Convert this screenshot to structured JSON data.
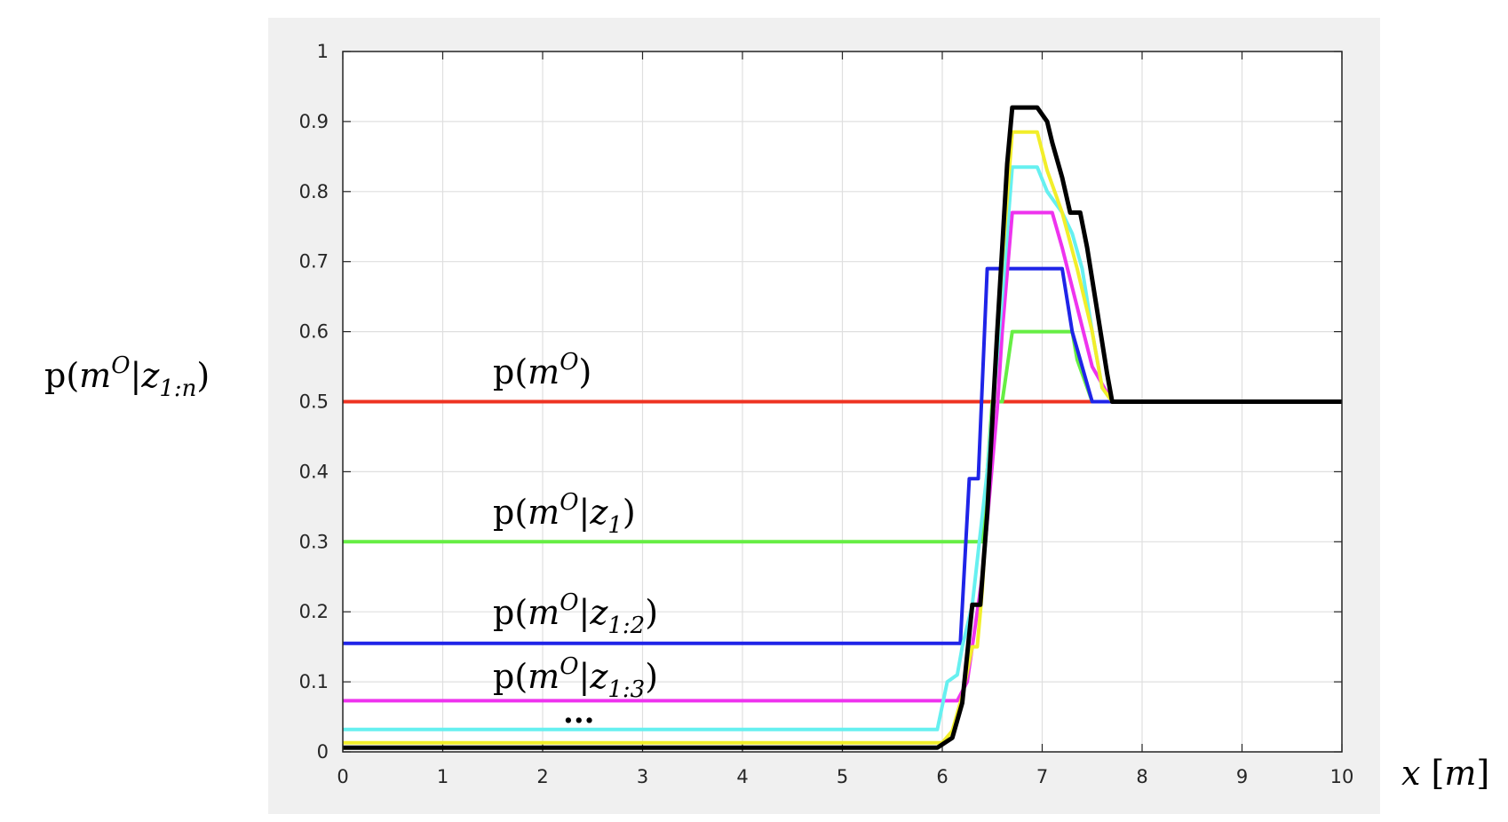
{
  "chart_data": {
    "type": "line",
    "xlim": [
      0,
      10
    ],
    "ylim": [
      0,
      1
    ],
    "x_ticks": [
      0,
      1,
      2,
      3,
      4,
      5,
      6,
      7,
      8,
      9,
      10
    ],
    "y_ticks": [
      0,
      0.1,
      0.2,
      0.3,
      0.4,
      0.5,
      0.6,
      0.7,
      0.8,
      0.9,
      1
    ],
    "x_tick_labels": [
      "0",
      "1",
      "2",
      "3",
      "4",
      "5",
      "6",
      "7",
      "8",
      "9",
      "10"
    ],
    "y_tick_labels": [
      "0",
      "0.1",
      "0.2",
      "0.3",
      "0.4",
      "0.5",
      "0.6",
      "0.7",
      "0.8",
      "0.9",
      "1"
    ],
    "grid": true,
    "xlabel": {
      "var": "x",
      "unit": "m"
    },
    "ylabel": {
      "p": "p(",
      "m": "m",
      "sup": "O",
      "bar": "|",
      "z": "z",
      "sub": "1:n",
      "close": ")"
    },
    "annotations": [
      {
        "p": "p(",
        "m": "m",
        "sup": "O",
        "bar": "",
        "z": "",
        "sub": "",
        "close": ")"
      },
      {
        "p": "p(",
        "m": "m",
        "sup": "O",
        "bar": "|",
        "z": "z",
        "sub": "1",
        "close": ")"
      },
      {
        "p": "p(",
        "m": "m",
        "sup": "O",
        "bar": "|",
        "z": "z",
        "sub": "1:2",
        "close": ")"
      },
      {
        "p": "p(",
        "m": "m",
        "sup": "O",
        "bar": "|",
        "z": "z",
        "sub": "1:3",
        "close": ")"
      },
      {
        "text": "..."
      }
    ],
    "series": [
      {
        "color": "#ee3322",
        "x": [
          0,
          10
        ],
        "y": [
          0.5,
          0.5
        ]
      },
      {
        "color": "#66ee44",
        "x": [
          0,
          6.4,
          6.5,
          6.6,
          6.7,
          7.3,
          7.35,
          7.5,
          7.7,
          10
        ],
        "y": [
          0.3,
          0.3,
          0.5,
          0.5,
          0.6,
          0.6,
          0.56,
          0.5,
          0.5,
          0.5
        ]
      },
      {
        "color": "#1f24e8",
        "x": [
          0,
          6.18,
          6.27,
          6.36,
          6.45,
          6.5,
          7.2,
          7.3,
          7.5,
          7.7,
          10
        ],
        "y": [
          0.155,
          0.155,
          0.39,
          0.39,
          0.69,
          0.69,
          0.69,
          0.6,
          0.5,
          0.5,
          0.5
        ]
      },
      {
        "color": "#ee33ee",
        "x": [
          0,
          6.15,
          6.25,
          6.4,
          6.55,
          6.6,
          6.7,
          7.1,
          7.2,
          7.5,
          7.7,
          10
        ],
        "y": [
          0.073,
          0.073,
          0.1,
          0.25,
          0.49,
          0.6,
          0.77,
          0.77,
          0.72,
          0.55,
          0.5,
          0.5
        ]
      },
      {
        "color": "#66f0f0",
        "x": [
          0,
          5.95,
          6.05,
          6.15,
          6.2,
          6.3,
          6.45,
          6.6,
          6.7,
          6.95,
          7.05,
          7.2,
          7.3,
          7.4,
          7.5,
          7.6,
          7.7,
          10
        ],
        "y": [
          0.032,
          0.032,
          0.1,
          0.11,
          0.15,
          0.21,
          0.4,
          0.65,
          0.835,
          0.835,
          0.8,
          0.77,
          0.74,
          0.69,
          0.6,
          0.52,
          0.5,
          0.5
        ]
      },
      {
        "color": "#f2ee2a",
        "x": [
          0,
          6.0,
          6.1,
          6.2,
          6.3,
          6.35,
          6.4,
          6.5,
          6.6,
          6.7,
          6.95,
          7.05,
          7.2,
          7.35,
          7.5,
          7.6,
          7.7,
          10
        ],
        "y": [
          0.013,
          0.013,
          0.03,
          0.08,
          0.15,
          0.15,
          0.23,
          0.48,
          0.7,
          0.885,
          0.885,
          0.83,
          0.77,
          0.69,
          0.6,
          0.52,
          0.5,
          0.5
        ]
      },
      {
        "color": "#000000",
        "x": [
          0,
          5.95,
          6.1,
          6.2,
          6.3,
          6.38,
          6.45,
          6.55,
          6.65,
          6.7,
          6.95,
          7.05,
          7.1,
          7.2,
          7.28,
          7.38,
          7.45,
          7.55,
          7.65,
          7.7,
          10
        ],
        "y": [
          0.006,
          0.006,
          0.02,
          0.07,
          0.21,
          0.21,
          0.34,
          0.6,
          0.84,
          0.92,
          0.92,
          0.9,
          0.87,
          0.82,
          0.77,
          0.77,
          0.72,
          0.63,
          0.54,
          0.5,
          0.5
        ]
      }
    ]
  }
}
